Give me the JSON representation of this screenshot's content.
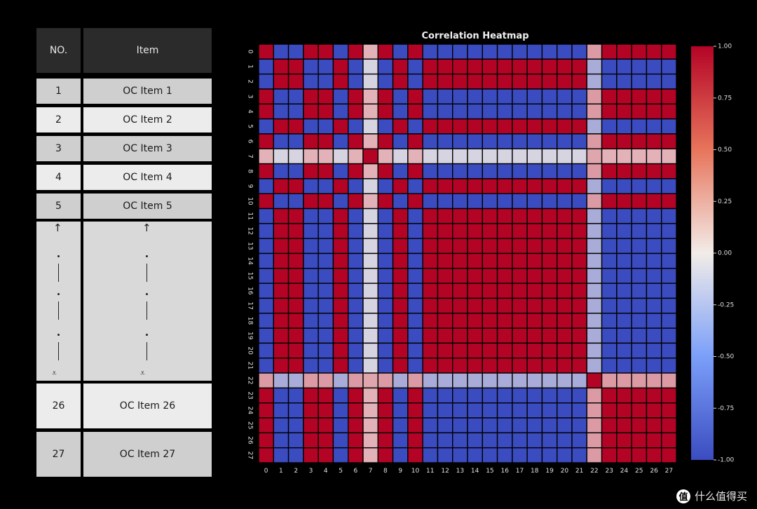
{
  "table": {
    "header": {
      "no": "NO.",
      "item": "Item"
    },
    "rows": [
      {
        "no": "1",
        "item": "OC Item 1"
      },
      {
        "no": "2",
        "item": "OC Item 2"
      },
      {
        "no": "3",
        "item": "OC Item 3"
      },
      {
        "no": "4",
        "item": "OC Item 4"
      },
      {
        "no": "5",
        "item": "OC Item 5"
      },
      {
        "no": "26",
        "item": "OC Item 26"
      },
      {
        "no": "27",
        "item": "OC Item 27"
      }
    ]
  },
  "watermark": {
    "badge": "值",
    "text": "什么值得买"
  },
  "chart_data": {
    "type": "heatmap",
    "title": "Correlation Heatmap",
    "x_categories": [
      "0",
      "1",
      "2",
      "3",
      "4",
      "5",
      "6",
      "7",
      "8",
      "9",
      "10",
      "11",
      "12",
      "13",
      "14",
      "15",
      "16",
      "17",
      "18",
      "19",
      "20",
      "21",
      "22",
      "23",
      "24",
      "25",
      "26",
      "27"
    ],
    "y_categories": [
      "0",
      "1",
      "2",
      "3",
      "4",
      "5",
      "6",
      "7",
      "8",
      "9",
      "10",
      "11",
      "12",
      "13",
      "14",
      "15",
      "16",
      "17",
      "18",
      "19",
      "20",
      "21",
      "22",
      "23",
      "24",
      "25",
      "26",
      "27"
    ],
    "groups": {
      "A": [
        0,
        3,
        4,
        6,
        8,
        10,
        23,
        24,
        25,
        26,
        27
      ],
      "B": [
        1,
        2,
        5,
        9,
        11,
        12,
        13,
        14,
        15,
        16,
        17,
        18,
        19,
        20,
        21
      ],
      "weak_7": 7,
      "weak_22": 22
    },
    "value_rule": "Same group = 1.00, A vs B = -1.00; row/col 7 ≈ +0.25 with A and -0.15 with B; row/col 22 ≈ +0.35 with A and -0.40 with B; diagonal = 1.00",
    "colorbar": {
      "min": -1.0,
      "max": 1.0,
      "ticks": [
        "1.00",
        "0.75",
        "0.50",
        "0.25",
        "0.00",
        "-0.25",
        "-0.50",
        "-0.75",
        "-1.00"
      ]
    },
    "colors": {
      "high": "#b40426",
      "mid": "#f2ece8",
      "low": "#3b4cc0"
    }
  }
}
